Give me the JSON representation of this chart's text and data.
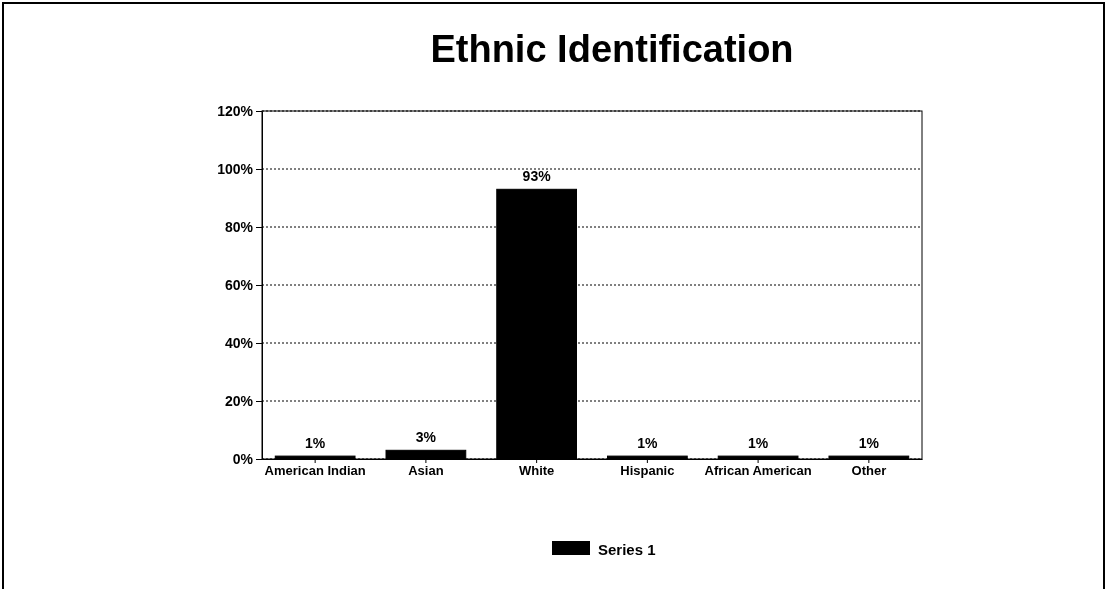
{
  "chart_data": {
    "type": "bar",
    "title": "Ethnic Identification",
    "categories": [
      "American Indian",
      "Asian",
      "White",
      "Hispanic",
      "African American",
      "Other"
    ],
    "series": [
      {
        "name": "Series 1",
        "color": "#000000",
        "values": [
          1,
          3,
          93,
          1,
          1,
          1
        ],
        "value_labels": [
          "1%",
          "3%",
          "93%",
          "1%",
          "1%",
          "1%"
        ]
      }
    ],
    "ylim": [
      0,
      120
    ],
    "yticks": [
      {
        "value": 0,
        "label": "0%"
      },
      {
        "value": 20,
        "label": "20%"
      },
      {
        "value": 40,
        "label": "40%"
      },
      {
        "value": 60,
        "label": "60%"
      },
      {
        "value": 80,
        "label": "80%"
      },
      {
        "value": 100,
        "label": "100%"
      },
      {
        "value": 120,
        "label": "120%"
      }
    ],
    "grid": "y",
    "legend": "bottom"
  }
}
